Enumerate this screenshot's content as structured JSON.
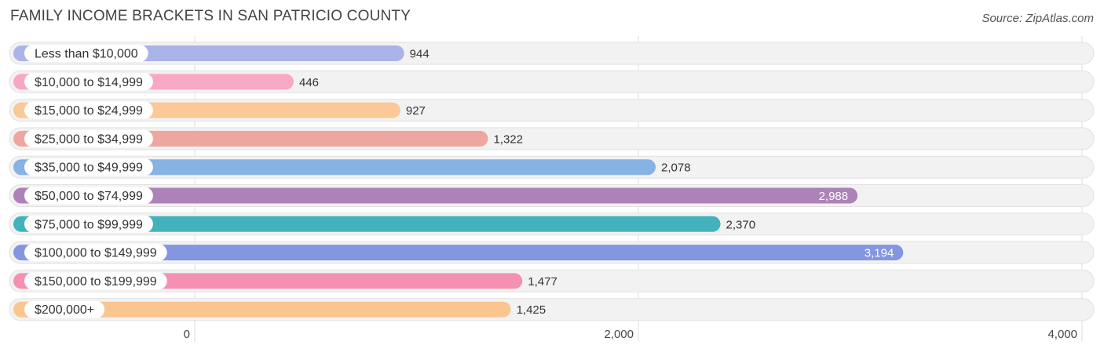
{
  "header": {
    "title": "FAMILY INCOME BRACKETS IN SAN PATRICIO COUNTY",
    "source": "Source: ZipAtlas.com"
  },
  "chart_data": {
    "type": "bar",
    "orientation": "horizontal",
    "title": "FAMILY INCOME BRACKETS IN SAN PATRICIO COUNTY",
    "categories": [
      "Less than $10,000",
      "$10,000 to $14,999",
      "$15,000 to $24,999",
      "$25,000 to $34,999",
      "$35,000 to $49,999",
      "$50,000 to $74,999",
      "$75,000 to $99,999",
      "$100,000 to $149,999",
      "$150,000 to $199,999",
      "$200,000+"
    ],
    "values": [
      944,
      446,
      927,
      1322,
      2078,
      2988,
      2370,
      3194,
      1477,
      1425
    ],
    "value_labels": [
      "944",
      "446",
      "927",
      "1,322",
      "2,078",
      "2,988",
      "2,370",
      "3,194",
      "1,477",
      "1,425"
    ],
    "colors": [
      "#aab4e8",
      "#f7a8c4",
      "#fbc898",
      "#eea6a0",
      "#86b2e4",
      "#ad82b8",
      "#44b2bd",
      "#8496e0",
      "#f590b2",
      "#fbc590"
    ],
    "xlim": [
      0,
      4000
    ],
    "xticks": [
      0,
      2000,
      4000
    ],
    "xtick_labels": [
      "0",
      "2,000",
      "4,000"
    ],
    "grid": true,
    "legend": "none"
  }
}
